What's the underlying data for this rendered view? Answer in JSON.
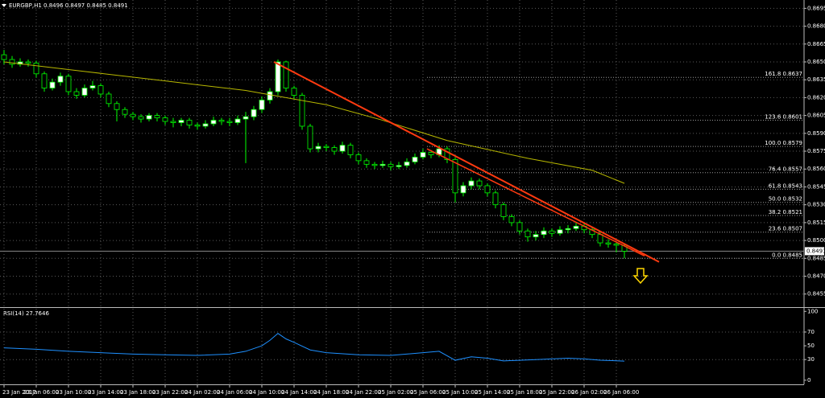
{
  "chart_data": [
    {
      "type": "candlestick",
      "title": "EURGBP,H1 0.8496 0.8497 0.8485 0.8491",
      "categories": [
        "23 Jan 2017",
        null,
        null,
        null,
        "23 Jan 06:00",
        null,
        null,
        null,
        "23 Jan 10:00",
        null,
        null,
        null,
        "23 Jan 14:00",
        null,
        null,
        null,
        "23 Jan 18:00",
        null,
        null,
        null,
        "23 Jan 22:00",
        null,
        null,
        null,
        "24 Jan 02:00",
        null,
        null,
        null,
        "24 Jan 06:00",
        null,
        null,
        null,
        "24 Jan 10:00",
        null,
        null,
        null,
        "24 Jan 14:00",
        null,
        null,
        null,
        "24 Jan 18:00",
        null,
        null,
        null,
        "24 Jan 22:00",
        null,
        null,
        null,
        "25 Jan 02:00",
        null,
        null,
        null,
        "25 Jan 06:00",
        null,
        null,
        null,
        "25 Jan 10:00",
        null,
        null,
        null,
        "25 Jan 14:00",
        null,
        null,
        null,
        "25 Jan 18:00",
        null,
        null,
        null,
        "25 Jan 22:00",
        null,
        null,
        null,
        "26 Jan 02:00",
        null,
        null,
        null,
        "26 Jan 06:00",
        null
      ],
      "open": [
        0.8656,
        0.8652,
        0.8648,
        0.865,
        0.8649,
        0.864,
        0.8628,
        0.8633,
        0.8638,
        0.8625,
        0.8622,
        0.8628,
        0.863,
        0.8623,
        0.8615,
        0.861,
        0.8606,
        0.8604,
        0.8602,
        0.8605,
        0.8603,
        0.86,
        0.8599,
        0.8601,
        0.8597,
        0.8596,
        0.8598,
        0.8601,
        0.86,
        0.8599,
        0.8602,
        0.8604,
        0.861,
        0.8618,
        0.8625,
        0.865,
        0.8628,
        0.8622,
        0.8596,
        0.8577,
        0.8579,
        0.8578,
        0.8575,
        0.858,
        0.8572,
        0.8567,
        0.8564,
        0.8563,
        0.8564,
        0.8562,
        0.8563,
        0.8566,
        0.857,
        0.8574,
        0.8572,
        0.8577,
        0.8568,
        0.854,
        0.8546,
        0.855,
        0.8546,
        0.854,
        0.853,
        0.852,
        0.8515,
        0.8508,
        0.8503,
        0.8505,
        0.8508,
        0.8506,
        0.8509,
        0.851,
        0.8512,
        0.8509,
        0.8505,
        0.8498,
        0.8497,
        0.8496
      ],
      "high": [
        0.866,
        0.8655,
        0.8653,
        0.8652,
        0.8651,
        0.8642,
        0.8636,
        0.8641,
        0.864,
        0.8628,
        0.8631,
        0.8634,
        0.8632,
        0.8625,
        0.8617,
        0.8612,
        0.8608,
        0.8606,
        0.8607,
        0.8607,
        0.8605,
        0.8603,
        0.8603,
        0.8603,
        0.8599,
        0.8601,
        0.8604,
        0.8603,
        0.8603,
        0.8605,
        0.8608,
        0.8613,
        0.8621,
        0.8628,
        0.8652,
        0.8651,
        0.863,
        0.8624,
        0.8598,
        0.8582,
        0.8581,
        0.858,
        0.8583,
        0.8582,
        0.8574,
        0.8569,
        0.8566,
        0.8567,
        0.8566,
        0.8566,
        0.8569,
        0.8573,
        0.8577,
        0.8576,
        0.858,
        0.8579,
        0.857,
        0.8549,
        0.8553,
        0.8552,
        0.8548,
        0.8542,
        0.8532,
        0.8522,
        0.8517,
        0.851,
        0.8508,
        0.8511,
        0.851,
        0.8512,
        0.8513,
        0.8515,
        0.8514,
        0.8511,
        0.8507,
        0.8501,
        0.8499,
        0.8497
      ],
      "low": [
        0.8648,
        0.8645,
        0.8646,
        0.8646,
        0.8637,
        0.8625,
        0.8626,
        0.863,
        0.8622,
        0.8619,
        0.862,
        0.8626,
        0.862,
        0.8612,
        0.86,
        0.8603,
        0.8601,
        0.8599,
        0.86,
        0.86,
        0.8597,
        0.8595,
        0.8596,
        0.8594,
        0.8593,
        0.8594,
        0.8596,
        0.8597,
        0.8596,
        0.8597,
        0.8565,
        0.8601,
        0.8607,
        0.8615,
        0.8622,
        0.8625,
        0.8619,
        0.8593,
        0.8574,
        0.8574,
        0.8575,
        0.8572,
        0.8573,
        0.8569,
        0.8564,
        0.8561,
        0.856,
        0.8561,
        0.8559,
        0.856,
        0.8561,
        0.8564,
        0.8568,
        0.8569,
        0.857,
        0.8565,
        0.8532,
        0.8537,
        0.8543,
        0.8543,
        0.8537,
        0.8527,
        0.8517,
        0.8512,
        0.8505,
        0.8499,
        0.85,
        0.8502,
        0.8503,
        0.8504,
        0.8506,
        0.8508,
        0.8506,
        0.8502,
        0.8495,
        0.8494,
        0.849,
        0.8485
      ],
      "close": [
        0.8652,
        0.8648,
        0.865,
        0.8649,
        0.864,
        0.8628,
        0.8633,
        0.8638,
        0.8625,
        0.8622,
        0.8628,
        0.863,
        0.8623,
        0.8615,
        0.861,
        0.8606,
        0.8604,
        0.8602,
        0.8605,
        0.8603,
        0.86,
        0.8599,
        0.8601,
        0.8597,
        0.8596,
        0.8598,
        0.8601,
        0.86,
        0.8599,
        0.8602,
        0.8604,
        0.861,
        0.8618,
        0.8625,
        0.865,
        0.8628,
        0.8622,
        0.8596,
        0.8577,
        0.8579,
        0.8578,
        0.8575,
        0.858,
        0.8572,
        0.8567,
        0.8564,
        0.8563,
        0.8564,
        0.8562,
        0.8563,
        0.8566,
        0.857,
        0.8574,
        0.8572,
        0.8577,
        0.8568,
        0.854,
        0.8546,
        0.855,
        0.8546,
        0.854,
        0.853,
        0.852,
        0.8515,
        0.8508,
        0.8503,
        0.8505,
        0.8508,
        0.8506,
        0.8509,
        0.851,
        0.8512,
        0.8509,
        0.8505,
        0.8498,
        0.8497,
        0.8496,
        0.8491
      ],
      "colors": {
        "up": "#ffffff",
        "down": "#000000",
        "wick": "#00ff00"
      },
      "ylim": [
        0.8444,
        0.8702
      ],
      "yticks": [
        0.8695,
        {
          "value": 0.868,
          "label": "0.8680"
        },
        0.8665,
        {
          "value": 0.865,
          "label": "0.8650"
        },
        0.8635,
        {
          "value": 0.862,
          "label": "0.8620"
        },
        0.8605,
        {
          "value": 0.859,
          "label": "0.8590"
        },
        0.8575,
        {
          "value": 0.856,
          "label": "0.8560"
        },
        0.8545,
        {
          "value": 0.853,
          "label": "0.8530"
        },
        0.8515,
        {
          "value": 0.85,
          "label": "0.8500"
        },
        0.8485,
        {
          "value": 0.847,
          "label": "0.8470"
        },
        0.8455
      ],
      "grid": true,
      "current_price": 0.8491,
      "overlays": [
        {
          "type": "line",
          "color": "#b8b800",
          "width": 1,
          "x": [
            0,
            10,
            20,
            30,
            40,
            47,
            55,
            65,
            73,
            77
          ],
          "values": [
            0.865,
            0.8642,
            0.8634,
            0.8626,
            0.8614,
            0.8601,
            0.8584,
            0.8569,
            0.8559,
            0.8548
          ]
        },
        {
          "type": "line",
          "color": "#ff3a10",
          "width": 2,
          "x": [
            33.5,
            81.3
          ],
          "values": [
            0.865,
            0.8482
          ]
        },
        {
          "type": "line",
          "color": "#ff3a10",
          "width": 1.5,
          "x": [
            52.5,
            79.5
          ],
          "values": [
            0.8577,
            0.8487
          ]
        }
      ],
      "fib_levels": [
        {
          "label": "161.8 0.8637",
          "value": 0.8637
        },
        {
          "label": "123.6 0.8601",
          "value": 0.8601
        },
        {
          "label": "100.0 0.8579",
          "value": 0.8579
        },
        {
          "label": "76.4 0.8557",
          "value": 0.8557
        },
        {
          "label": "61.8 0.8543",
          "value": 0.8543
        },
        {
          "label": "50.0 0.8532",
          "value": 0.8532
        },
        {
          "label": "38.2 0.8521",
          "value": 0.8521
        },
        {
          "label": "23.6 0.8507",
          "value": 0.8507
        },
        {
          "label": "0.0 0.8485",
          "value": 0.8485
        }
      ],
      "fib_color": "#9a9a9a"
    },
    {
      "type": "line",
      "title": "RSI(14) 27.7646",
      "x": [
        0,
        4,
        8,
        12,
        16,
        20,
        24,
        28,
        30,
        32,
        33,
        34,
        35,
        36,
        38,
        40,
        44,
        48,
        52,
        54,
        56,
        58,
        60,
        62,
        66,
        70,
        72,
        74,
        77
      ],
      "values": [
        47,
        45,
        42,
        40,
        38,
        37,
        36,
        38,
        42,
        50,
        58,
        68,
        60,
        55,
        44,
        40,
        37,
        36,
        40,
        42,
        29,
        34,
        32,
        28,
        30,
        32,
        31,
        29,
        27.7646
      ],
      "color": "#1e90ff",
      "ylim": [
        -6,
        105
      ],
      "yticks": [
        0,
        30,
        50,
        70,
        100
      ],
      "levels": [
        30,
        70
      ]
    }
  ]
}
